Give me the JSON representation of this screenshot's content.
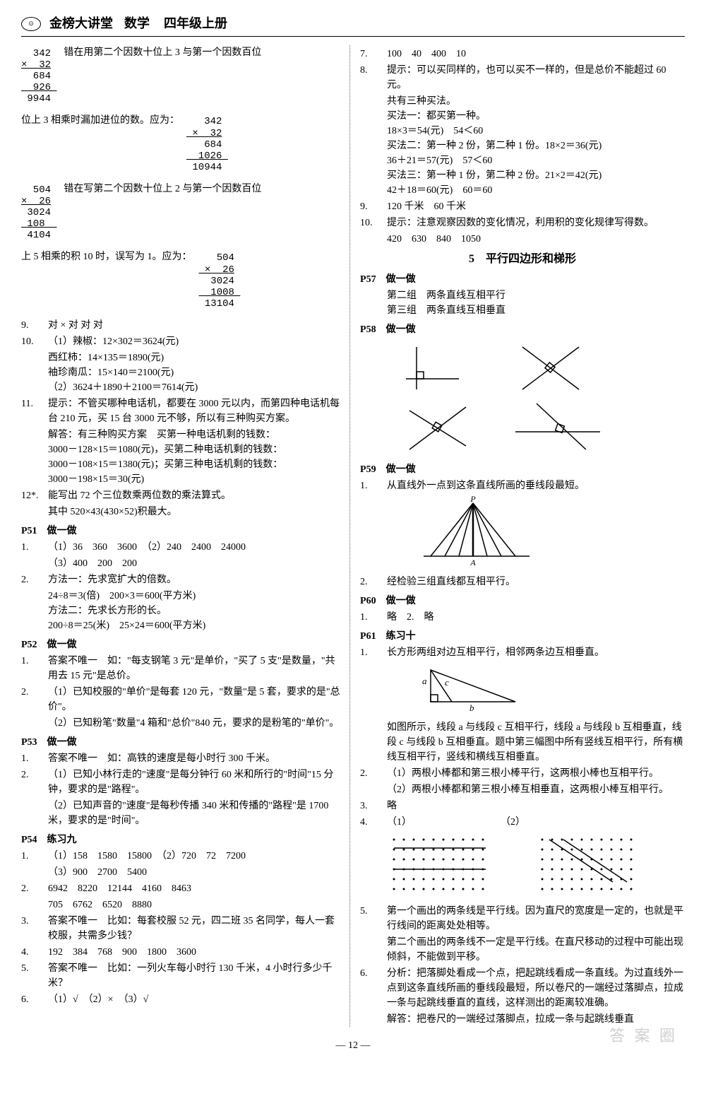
{
  "header": {
    "title": "金榜大讲堂",
    "subject": "数学",
    "grade": "四年级上册"
  },
  "left": {
    "calc1": {
      "lines": [
        "  342",
        "×  32",
        "  684",
        "  926",
        " 9944"
      ],
      "note": "错在用第二个因数十位上 3 与第一个因数百位"
    },
    "calc1b": {
      "prefix": "位上 3 相乘时漏加进位的数。应为：",
      "lines": [
        "   342",
        " ×  32",
        "   684",
        "  1026",
        " 10944"
      ]
    },
    "calc2": {
      "lines": [
        "  504",
        "×  26",
        " 3024",
        " 108",
        " 4104"
      ],
      "note": "错在写第二个因数十位上 2 与第一个因数百位"
    },
    "calc2b": {
      "prefix": "上 5 相乘的积 10 时，误写为 1。应为：",
      "lines": [
        "   504",
        " ×  26",
        "  3024",
        "  1008",
        " 13104"
      ]
    },
    "q9": "对 × 对 对 对",
    "q10_label": "10.",
    "q10_lines": [
      "（1）辣椒：12×302＝3624(元)",
      "西红柿：14×135＝1890(元)",
      "袖珍南瓜：15×140＝2100(元)",
      "（2）3624＋1890＋2100＝7614(元)"
    ],
    "q11_label": "11.",
    "q11_lines": [
      "提示：不管买哪种电话机，都要在 3000 元以内，而第四种电话机每台 210 元，买 15 台 3000 元不够，所以有三种购买方案。",
      "解答：有三种购买方案　买第一种电话机剩的钱数：",
      "3000－128×15＝1080(元)，买第二种电话机剩的钱数：",
      "3000－108×15＝1380(元)；买第三种电话机剩的钱数：",
      "3000－198×15＝30(元)"
    ],
    "q12_label": "12*.",
    "q12_lines": [
      "能写出 72 个三位数乘两位数的乘法算式。",
      "其中 520×43(430×52)积最大。"
    ],
    "p51": "P51　做一做",
    "p51_items": [
      {
        "n": "1.",
        "t": "（1）36　360　3600　（2）240　2400　24000"
      },
      {
        "n": "",
        "t": "（3）400　200　200"
      },
      {
        "n": "2.",
        "t": "方法一：先求宽扩大的倍数。"
      },
      {
        "n": "",
        "t": "24÷8＝3(倍)　200×3＝600(平方米)"
      },
      {
        "n": "",
        "t": "方法二：先求长方形的长。"
      },
      {
        "n": "",
        "t": "200÷8＝25(米)　25×24＝600(平方米)"
      }
    ],
    "p52": "P52　做一做",
    "p52_items": [
      {
        "n": "1.",
        "t": "答案不唯一　如：\"每支钢笔 3 元\"是单价，\"买了 5 支\"是数量，\"共用去 15 元\"是总价。"
      },
      {
        "n": "2.",
        "t": "（1）已知校服的\"单价\"是每套 120 元，\"数量\"是 5 套，要求的是\"总价\"。"
      },
      {
        "n": "",
        "t": "（2）已知粉笔\"数量\"4 箱和\"总价\"840 元，要求的是粉笔的\"单价\"。"
      }
    ],
    "p53": "P53　做一做",
    "p53_items": [
      {
        "n": "1.",
        "t": "答案不唯一　如：高铁的速度是每小时行 300 千米。"
      },
      {
        "n": "2.",
        "t": "（1）已知小林行走的\"速度\"是每分钟行 60 米和所行的\"时间\"15 分钟，要求的是\"路程\"。"
      },
      {
        "n": "",
        "t": "（2）已知声音的\"速度\"是每秒传播 340 米和传播的\"路程\"是 1700 米，要求的是\"时间\"。"
      }
    ],
    "p54": "P54　练习九",
    "p54_items": [
      {
        "n": "1.",
        "t": "（1）158　1580　15800　（2）720　72　7200"
      },
      {
        "n": "",
        "t": "（3）900　2700　5400"
      },
      {
        "n": "2.",
        "t": "6942　8220　12144　4160　8463"
      },
      {
        "n": "",
        "t": "705　6762　6520　8880"
      },
      {
        "n": "3.",
        "t": "答案不唯一　比如：每套校服 52 元，四二班 35 名同学，每人一套校服，共需多少钱？"
      },
      {
        "n": "4.",
        "t": "192　384　768　900　1800　3600"
      },
      {
        "n": "5.",
        "t": "答案不唯一　比如：一列火车每小时行 130 千米，4 小时行多少千米？"
      },
      {
        "n": "6.",
        "t": "（1）√　（2）×　（3）√"
      }
    ]
  },
  "right": {
    "q7": {
      "n": "7.",
      "t": "100　40　400　10"
    },
    "q8": {
      "n": "8.",
      "lines": [
        "提示：可以买同样的，也可以买不一样的，但是总价不能超过 60 元。",
        "共有三种买法。",
        "买法一：都买第一种。",
        "18×3＝54(元)　54＜60",
        "买法二：第一种 2 份，第二种 1 份。18×2＝36(元)",
        "36＋21＝57(元)　57＜60",
        "买法三：第一种 1 份，第二种 2 份。21×2＝42(元)",
        "42＋18＝60(元)　60＝60"
      ]
    },
    "q9": {
      "n": "9.",
      "t": "120 千米　60 千米"
    },
    "q10": {
      "n": "10.",
      "lines": [
        "提示：注意观察因数的变化情况，利用积的变化规律写得数。",
        "420　630　840　1050"
      ]
    },
    "section5": "5　平行四边形和梯形",
    "p57": "P57　做一做",
    "p57_items": [
      {
        "n": "",
        "t": "第二组　两条直线互相平行"
      },
      {
        "n": "",
        "t": "第三组　两条直线互相垂直"
      }
    ],
    "p58": "P58　做一做",
    "p59": "P59　做一做",
    "p59_items": [
      {
        "n": "1.",
        "t": "从直线外一点到这条直线所画的垂线段最短。"
      }
    ],
    "p59_labels": {
      "P": "P",
      "A": "A"
    },
    "p59_q2": {
      "n": "2.",
      "t": "经检验三组直线都互相平行。"
    },
    "p60": "P60　做一做",
    "p60_items": [
      {
        "n": "1.",
        "t": "略　2.　略"
      }
    ],
    "p61": "P61　练习十",
    "p61_items": [
      {
        "n": "1.",
        "t": "长方形两组对边互相平行，相邻两条边互相垂直。"
      }
    ],
    "tri_labels": {
      "a": "a",
      "b": "b",
      "c": "c"
    },
    "p61_after_tri": [
      "如图所示，线段 a 与线段 c 互相平行，线段 a 与线段 b 互相垂直，线段 c 与线段 b 互相垂直。题中第三幅图中所有竖线互相平行，所有横线互相平行，竖线和横线互相垂直。"
    ],
    "p61_q2": {
      "n": "2.",
      "lines": [
        "（1）两根小棒都和第三根小棒平行，这两根小棒也互相平行。",
        "（2）两根小棒都和第三根小棒互相垂直，这两根小棒互相平行。"
      ]
    },
    "p61_q3": {
      "n": "3.",
      "t": "略"
    },
    "p61_q4": {
      "n": "4.",
      "t": "（1）　　　　　　　　　　（2）"
    },
    "p61_q5": {
      "n": "5.",
      "lines": [
        "第一个画出的两条线是平行线。因为直尺的宽度是一定的，也就是平行线间的距离处处相等。",
        "第二个画出的两条线不一定是平行线。在直尺移动的过程中可能出现倾斜，不能做到平移。"
      ]
    },
    "p61_q6": {
      "n": "6.",
      "lines": [
        "分析：把落脚处看成一个点，把起跳线看成一条直线。为过直线外一点到这条直线所画的垂线段最短，所以卷尺的一端经过落脚点，拉成一条与起跳线垂直的直线，这样测出的距离较准确。",
        "解答：把卷尺的一端经过落脚点，拉成一条与起跳线垂直"
      ]
    }
  },
  "page_number": "— 12 —",
  "watermark": "答 案 圈"
}
